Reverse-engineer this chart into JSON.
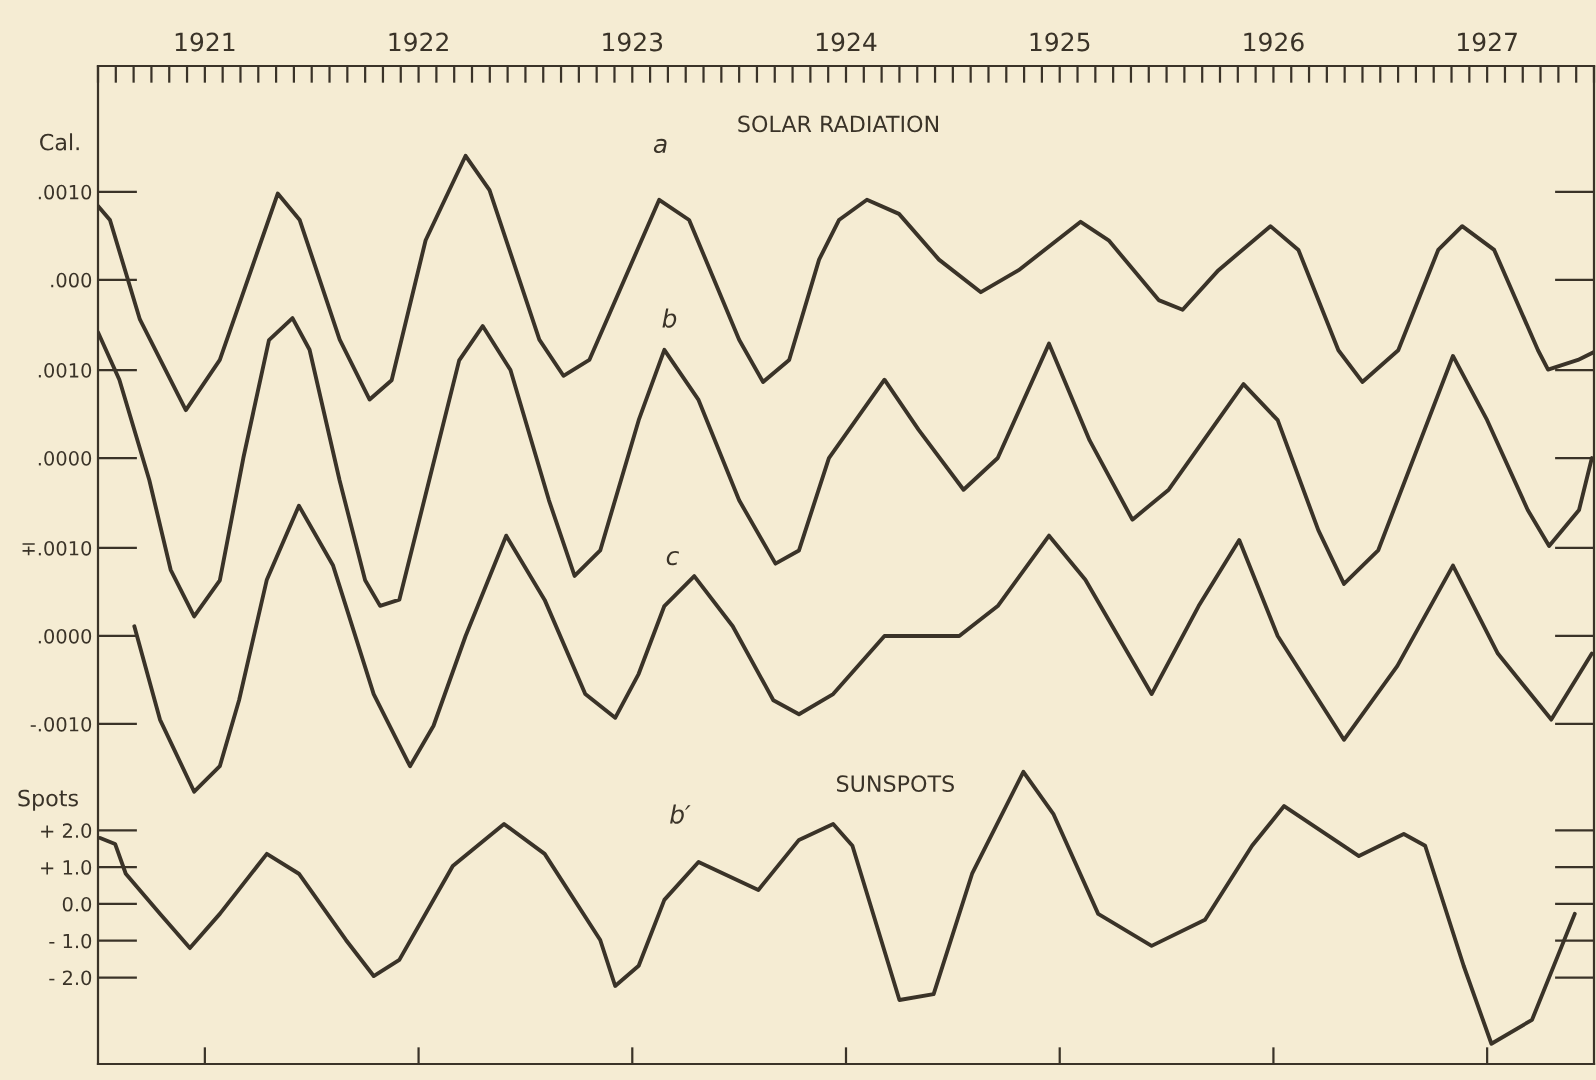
{
  "chart_data": [
    {
      "type": "line",
      "title": "SOLAR RADIATION",
      "ylabel": "Cal.",
      "xlim": [
        1921,
        1928
      ],
      "xticks": [
        {
          "value": 1921.5,
          "label": "1921"
        },
        {
          "value": 1922.5,
          "label": "1922"
        },
        {
          "value": 1923.5,
          "label": "1923"
        },
        {
          "value": 1924.5,
          "label": "1924"
        },
        {
          "value": 1925.5,
          "label": "1925"
        },
        {
          "value": 1926.5,
          "label": "1926"
        },
        {
          "value": 1927.5,
          "label": "1927"
        }
      ],
      "ylim": [
        -0.00891,
        0.00243
      ],
      "yticks": [
        {
          "value": 0.001,
          "label": ".0010"
        },
        {
          "value": 0,
          "label": ".000"
        }
      ],
      "annotations": [
        "a"
      ],
      "series": [
        {
          "color": "#3a3328",
          "x": [
            1921.0,
            1921.056,
            1921.196,
            1921.411,
            1921.57,
            1921.841,
            1921.944,
            1922.131,
            1922.271,
            1922.374,
            1922.533,
            1922.72,
            1922.832,
            1923.065,
            1923.178,
            1923.299,
            1923.626,
            1923.766,
            1924.0,
            1924.112,
            1924.234,
            1924.374,
            1924.467,
            1924.598,
            1924.748,
            1924.935,
            1925.131,
            1925.308,
            1925.598,
            1925.729,
            1925.963,
            1926.075,
            1926.243,
            1926.486,
            1926.617,
            1926.804,
            1926.916,
            1927.084,
            1927.271,
            1927.383,
            1927.533,
            1927.738,
            1927.785,
            1927.925,
            1928.0
          ],
          "values": [
            0.00084,
            0.00068,
            -0.00045,
            -0.00148,
            -0.00091,
            0.00098,
            0.00068,
            -0.00068,
            -0.00136,
            -0.00114,
            0.00045,
            0.00141,
            0.00102,
            -0.00068,
            -0.00109,
            -0.00091,
            0.00091,
            0.00068,
            -0.00068,
            -0.00116,
            -0.00091,
            0.00023,
            0.00068,
            0.00091,
            0.00075,
            0.00023,
            -0.00014,
            0.00011,
            0.00066,
            0.00045,
            -0.00023,
            -0.00034,
            0.00011,
            0.00061,
            0.00034,
            -0.0008,
            -0.00116,
            -0.0008,
            0.00034,
            0.00061,
            0.00034,
            -0.0008,
            -0.00102,
            -0.00091,
            -0.00082
          ]
        }
      ]
    },
    {
      "type": "line",
      "tick_labels": "y",
      "xlim": [
        1921,
        1928
      ],
      "ylim": [
        -0.006886,
        0.004455
      ],
      "yticks": [
        {
          "value": 0.001,
          "label": ".0010"
        },
        {
          "value": 0,
          "label": ".0000"
        }
      ],
      "annotations": [
        "b"
      ],
      "series": [
        {
          "color": "#3a3328",
          "x": [
            1921.0,
            1921.1,
            1921.24,
            1921.34,
            1921.45,
            1921.57,
            1921.68,
            1921.8,
            1921.91,
            1921.99,
            1922.13,
            1922.25,
            1922.32,
            1922.41,
            1922.55,
            1922.69,
            1922.8,
            1922.93,
            1923.11,
            1923.23,
            1923.35,
            1923.53,
            1923.65,
            1923.81,
            1924.0,
            1924.17,
            1924.28,
            1924.42,
            1924.68,
            1924.84,
            1925.05,
            1925.21,
            1925.45,
            1925.64,
            1925.84,
            1926.01,
            1926.36,
            1926.52,
            1926.71,
            1926.83,
            1926.99,
            1927.34,
            1927.5,
            1927.69,
            1927.79,
            1927.93,
            1927.99
          ],
          "values": [
            0.00143,
            0.00089,
            -0.00025,
            -0.00127,
            -0.0018,
            -0.00139,
            0,
            0.00134,
            0.00159,
            0.00123,
            -0.00025,
            -0.00139,
            -0.00168,
            -0.00161,
            -0.00025,
            0.00111,
            0.0015,
            0.001,
            -0.00048,
            -0.00134,
            -0.00105,
            0.00043,
            0.00123,
            0.00066,
            -0.00048,
            -0.0012,
            -0.00105,
            0,
            0.00089,
            0.00032,
            -0.00036,
            0,
            0.0013,
            0.0002,
            -0.0007,
            -0.00036,
            0.00084,
            0.00043,
            -0.00082,
            -0.00143,
            -0.00105,
            0.00116,
            0.00043,
            -0.00059,
            -0.001,
            -0.00059,
            0
          ]
        }
      ]
    },
    {
      "type": "line",
      "tick_labels": "y",
      "xlim": [
        1921,
        1928
      ],
      "ylim": [
        -0.004864,
        0.006477
      ],
      "yticks": [
        {
          "value": 0.001,
          "label": "∓.0010"
        },
        {
          "value": 0,
          "label": ".0000"
        },
        {
          "value": -0.001,
          "label": "-.0010"
        }
      ],
      "annotations": [
        "c"
      ],
      "series": [
        {
          "color": "#3a3328",
          "x": [
            1921.17,
            1921.29,
            1921.45,
            1921.57,
            1921.66,
            1921.79,
            1921.94,
            1922.1,
            1922.29,
            1922.46,
            1922.57,
            1922.72,
            1922.91,
            1923.09,
            1923.28,
            1923.42,
            1923.53,
            1923.65,
            1923.79,
            1923.97,
            1924.16,
            1924.28,
            1924.44,
            1924.68,
            1925.03,
            1925.21,
            1925.45,
            1925.62,
            1925.93,
            1926.15,
            1926.34,
            1926.52,
            1926.83,
            1927.08,
            1927.34,
            1927.55,
            1927.8,
            1927.99
          ],
          "values": [
            0.00011,
            -0.00095,
            -0.00177,
            -0.00148,
            -0.00073,
            0.00064,
            0.00148,
            0.0008,
            -0.00066,
            -0.00148,
            -0.00102,
            0,
            0.00114,
            0.00041,
            -0.00066,
            -0.00093,
            -0.00043,
            0.00034,
            0.00068,
            0.00011,
            -0.00073,
            -0.00089,
            -0.00066,
            0,
            0,
            0.00034,
            0.00114,
            0.00064,
            -0.00066,
            0.00034,
            0.00109,
            0,
            -0.00118,
            -0.00034,
            0.0008,
            -0.0002,
            -0.00095,
            -0.0002
          ]
        }
      ]
    },
    {
      "type": "line",
      "title": "SUNSPOTS",
      "ylabel": "Spots",
      "tick_labels": "y",
      "xlim": [
        1921,
        1928
      ],
      "ylim": [
        -4.35,
        22.77
      ],
      "yticks": [
        {
          "value": 2,
          "label": "+ 2.0"
        },
        {
          "value": 1,
          "label": "+ 1.0"
        },
        {
          "value": 0,
          "label": "0.0"
        },
        {
          "value": -1,
          "label": "- 1.0"
        },
        {
          "value": -2,
          "label": "- 2.0"
        }
      ],
      "annotations": [
        "b′"
      ],
      "series": [
        {
          "color": "#3a3328",
          "x": [
            1921.01,
            1921.08,
            1921.13,
            1921.29,
            1921.43,
            1921.57,
            1921.79,
            1921.94,
            1922.16,
            1922.29,
            1922.41,
            1922.66,
            1922.9,
            1923.09,
            1923.35,
            1923.42,
            1923.53,
            1923.65,
            1923.81,
            1924.09,
            1924.28,
            1924.44,
            1924.53,
            1924.75,
            1924.91,
            1925.09,
            1925.33,
            1925.47,
            1925.68,
            1925.93,
            1926.18,
            1926.4,
            1926.55,
            1926.9,
            1927.11,
            1927.21,
            1927.39,
            1927.52,
            1927.71,
            1927.91
          ],
          "values": [
            1.79,
            1.63,
            0.82,
            -0.27,
            -1.2,
            -0.27,
            1.36,
            0.82,
            -0.98,
            -1.96,
            -1.52,
            1.03,
            2.17,
            1.36,
            -0.98,
            -2.23,
            -1.68,
            0.11,
            1.14,
            0.38,
            1.74,
            2.17,
            1.58,
            -2.61,
            -2.45,
            0.82,
            3.59,
            2.45,
            -0.27,
            -1.14,
            -0.43,
            1.58,
            2.66,
            1.3,
            1.9,
            1.58,
            -1.68,
            -3.8,
            -3.15,
            -0.27
          ]
        }
      ]
    }
  ]
}
